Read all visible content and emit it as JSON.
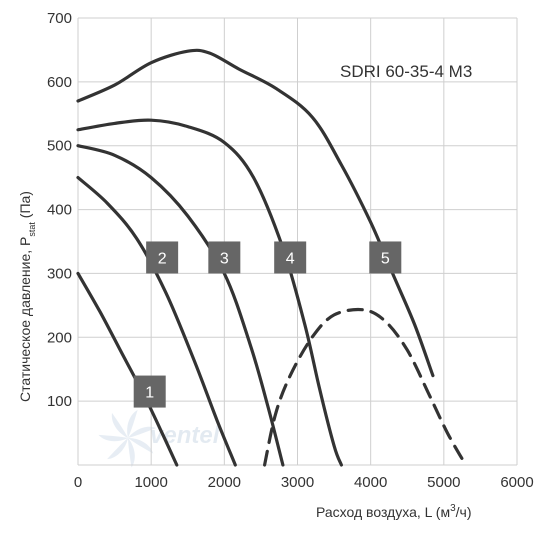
{
  "chart_data": {
    "type": "line",
    "title": "SDRI 60-35-4 M3",
    "xlabel_main": "Расход воздуха, L (м",
    "xlabel_sup": "3",
    "xlabel_end": "/ч)",
    "ylabel_main": "Статическое давление, P",
    "ylabel_sub": "stat",
    "ylabel_end": " (Па)",
    "xlim": [
      0,
      6000
    ],
    "ylim": [
      0,
      700
    ],
    "xticks": [
      0,
      1000,
      2000,
      3000,
      4000,
      5000,
      6000
    ],
    "yticks": [
      100,
      200,
      300,
      400,
      500,
      600,
      700
    ],
    "xtick_labels": [
      "0",
      "1000",
      "2000",
      "3000",
      "4000",
      "5000",
      "6000"
    ],
    "ytick_labels": [
      "100",
      "200",
      "300",
      "400",
      "500",
      "600",
      "700"
    ],
    "grid": true,
    "colors": {
      "curve": "#333333",
      "grid": "#cfcfcf",
      "badge": "#666666",
      "badge_text": "#ffffff"
    },
    "watermark": "ventel",
    "series": [
      {
        "name": "1",
        "style": "solid",
        "points": [
          [
            0,
            300
          ],
          [
            300,
            240
          ],
          [
            600,
            175
          ],
          [
            900,
            110
          ],
          [
            1150,
            50
          ],
          [
            1350,
            0
          ]
        ],
        "label_pos": [
          980,
          115
        ]
      },
      {
        "name": "2",
        "style": "solid",
        "points": [
          [
            0,
            450
          ],
          [
            400,
            410
          ],
          [
            800,
            355
          ],
          [
            1200,
            270
          ],
          [
            1600,
            160
          ],
          [
            1900,
            70
          ],
          [
            2150,
            0
          ]
        ],
        "label_pos": [
          1150,
          325
        ]
      },
      {
        "name": "3",
        "style": "solid",
        "points": [
          [
            0,
            500
          ],
          [
            500,
            485
          ],
          [
            1000,
            450
          ],
          [
            1500,
            390
          ],
          [
            2000,
            300
          ],
          [
            2350,
            190
          ],
          [
            2600,
            90
          ],
          [
            2800,
            0
          ]
        ],
        "label_pos": [
          2000,
          325
        ]
      },
      {
        "name": "4",
        "style": "solid",
        "points": [
          [
            0,
            525
          ],
          [
            500,
            535
          ],
          [
            1000,
            540
          ],
          [
            1500,
            530
          ],
          [
            2000,
            505
          ],
          [
            2400,
            450
          ],
          [
            2800,
            340
          ],
          [
            3100,
            220
          ],
          [
            3300,
            120
          ],
          [
            3500,
            30
          ],
          [
            3600,
            0
          ]
        ],
        "label_pos": [
          2900,
          325
        ]
      },
      {
        "name": "5",
        "style": "solid",
        "points": [
          [
            0,
            570
          ],
          [
            500,
            595
          ],
          [
            1000,
            630
          ],
          [
            1500,
            648
          ],
          [
            1800,
            645
          ],
          [
            2200,
            620
          ],
          [
            2700,
            590
          ],
          [
            3200,
            545
          ],
          [
            3600,
            470
          ],
          [
            4000,
            380
          ],
          [
            4300,
            300
          ],
          [
            4600,
            220
          ],
          [
            4850,
            140
          ]
        ],
        "label_pos": [
          4200,
          325
        ]
      },
      {
        "name": "",
        "style": "dashed",
        "points": [
          [
            2550,
            0
          ],
          [
            2700,
            80
          ],
          [
            2900,
            140
          ],
          [
            3200,
            200
          ],
          [
            3500,
            235
          ],
          [
            3900,
            243
          ],
          [
            4200,
            225
          ],
          [
            4500,
            180
          ],
          [
            4800,
            110
          ],
          [
            5050,
            50
          ],
          [
            5300,
            0
          ]
        ],
        "label_pos": null
      }
    ]
  }
}
